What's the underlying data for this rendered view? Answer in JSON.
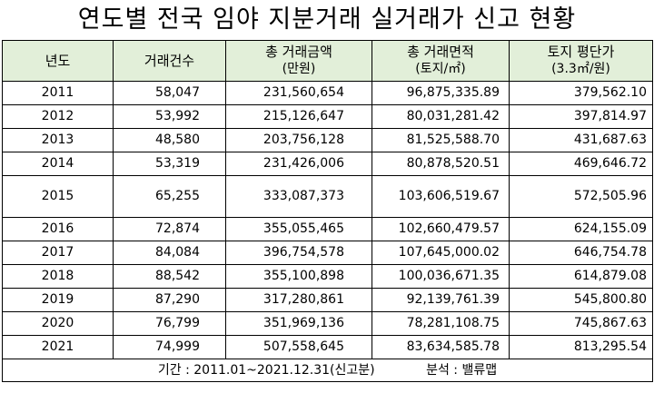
{
  "title": "연도별 전국 임야 지분거래 실거래가 신고 현황",
  "headers": {
    "year": "년도",
    "count": "거래건수",
    "amount_line1": "총 거래금액",
    "amount_line2": "(만원)",
    "area_line1": "총 거래면적",
    "area_line2": "(토지/㎡)",
    "price_line1": "토지 평단가",
    "price_line2": "(3.3㎡/원)"
  },
  "rows": [
    {
      "year": "2011",
      "count": "58,047",
      "amount": "231,560,654",
      "area": "96,875,335.89",
      "price": "379,562.10"
    },
    {
      "year": "2012",
      "count": "53,992",
      "amount": "215,126,647",
      "area": "80,031,281.42",
      "price": "397,814.97"
    },
    {
      "year": "2013",
      "count": "48,580",
      "amount": "203,756,128",
      "area": "81,525,588.70",
      "price": "431,687.63"
    },
    {
      "year": "2014",
      "count": "53,319",
      "amount": "231,426,006",
      "area": "80,878,520.51",
      "price": "469,646.72"
    },
    {
      "year": "2015",
      "count": "65,255",
      "amount": "333,087,373",
      "area": "103,606,519.67",
      "price": "572,505.96"
    },
    {
      "year": "2016",
      "count": "72,874",
      "amount": "355,055,465",
      "area": "102,660,479.57",
      "price": "624,155.09"
    },
    {
      "year": "2017",
      "count": "84,084",
      "amount": "396,754,578",
      "area": "107,645,000.02",
      "price": "646,754.78"
    },
    {
      "year": "2018",
      "count": "88,542",
      "amount": "355,100,898",
      "area": "100,036,671.35",
      "price": "614,879.08"
    },
    {
      "year": "2019",
      "count": "87,290",
      "amount": "317,280,861",
      "area": "92,139,761.39",
      "price": "545,800.80"
    },
    {
      "year": "2020",
      "count": "76,799",
      "amount": "351,969,136",
      "area": "78,281,108.75",
      "price": "745,867.63"
    },
    {
      "year": "2021",
      "count": "74,999",
      "amount": "507,558,645",
      "area": "83,634,585.78",
      "price": "813,295.54"
    }
  ],
  "footer": {
    "period": "기간 : 2011.01~2021.12.31(신고분)",
    "analysis": "분석 : 밸류맵"
  },
  "colors": {
    "header_bg": "#e2efd9",
    "border": "#000000"
  }
}
